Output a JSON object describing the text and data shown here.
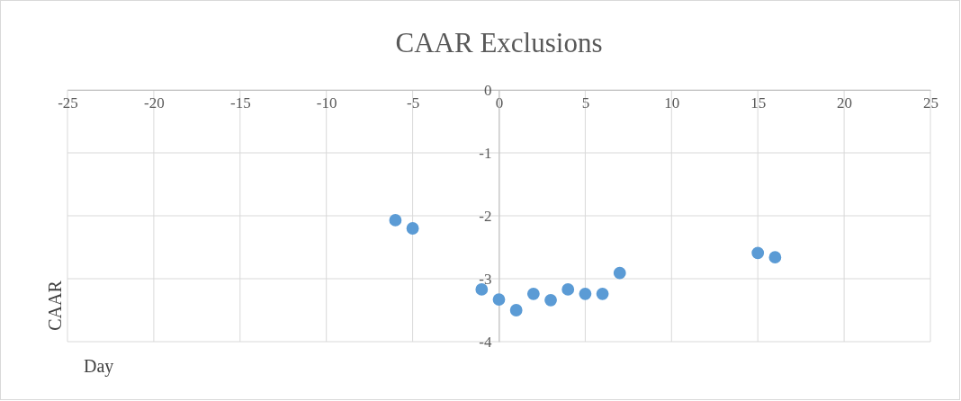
{
  "chart_data": {
    "type": "scatter",
    "title": "CAAR Exclusions",
    "xlabel": "Day",
    "ylabel": "CAAR",
    "x": [
      -6,
      -5,
      -1,
      0,
      1,
      2,
      3,
      4,
      5,
      6,
      7,
      15,
      16
    ],
    "series": [
      {
        "color": "#5b9bd5",
        "values": [
          -2.07,
          -2.2,
          -3.17,
          -3.33,
          -3.5,
          -3.24,
          -3.34,
          -3.17,
          -3.24,
          -3.24,
          -2.91,
          -2.59,
          -2.66
        ]
      }
    ],
    "xlim": [
      -25,
      25
    ],
    "xticks": [
      -25,
      -20,
      -15,
      -10,
      -5,
      0,
      5,
      10,
      15,
      20,
      25
    ],
    "ylim": [
      -4,
      0
    ],
    "yticks": [
      -4,
      -3,
      -2,
      -1,
      0
    ],
    "grid": true,
    "marker": "circle"
  }
}
